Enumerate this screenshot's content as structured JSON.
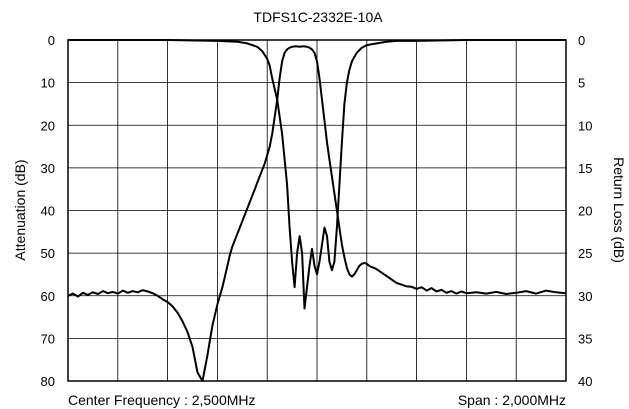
{
  "chart_data": {
    "type": "line",
    "title": "TDFS1C-2332E-10A",
    "ylabel_left": "Attenuation (dB)",
    "ylabel_right": "Return Loss (dB)",
    "footer_left": "Center Frequency : 2,500MHz",
    "footer_right": "Span : 2,000MHz",
    "x_divisions": 10,
    "ylim_left": [
      0,
      80
    ],
    "ylim_right": [
      0,
      40
    ],
    "yticks_left": [
      "0",
      "10",
      "20",
      "30",
      "40",
      "50",
      "60",
      "70",
      "80"
    ],
    "yticks_right": [
      "0",
      "5",
      "10",
      "15",
      "20",
      "25",
      "30",
      "35",
      "40"
    ],
    "y_inverted": true,
    "grid": true,
    "series": [
      {
        "axis": "left",
        "x": [
          0,
          0.1,
          0.2,
          0.3,
          0.4,
          0.5,
          0.6,
          0.7,
          0.8,
          0.9,
          1.0,
          1.1,
          1.2,
          1.3,
          1.4,
          1.5,
          1.6,
          1.7,
          1.8,
          1.9,
          2.0,
          2.1,
          2.2,
          2.3,
          2.4,
          2.5,
          2.6,
          2.7,
          2.8,
          2.9,
          3.0,
          3.1,
          3.15,
          3.2,
          3.25,
          3.3,
          3.35,
          3.4,
          3.45,
          3.5,
          3.55,
          3.6,
          3.65,
          3.7,
          3.75,
          3.8,
          3.85,
          3.9,
          3.95,
          4.0,
          4.05,
          4.1,
          4.15,
          4.2,
          4.25,
          4.3,
          4.35,
          4.4,
          4.45,
          4.5,
          4.55,
          4.6,
          4.65,
          4.7,
          4.75,
          4.8,
          4.85,
          4.9,
          4.95,
          5.0,
          5.05,
          5.1,
          5.15,
          5.2,
          5.25,
          5.3,
          5.35,
          5.4,
          5.45,
          5.5,
          5.55,
          5.6,
          5.65,
          5.7,
          5.75,
          5.8,
          5.85,
          5.9,
          5.95,
          6.0,
          6.05,
          6.1,
          6.15,
          6.2,
          6.25,
          6.3,
          6.35,
          6.4,
          6.45,
          6.5,
          6.55,
          6.6,
          6.7,
          6.8,
          6.9,
          7.0,
          7.1,
          7.2,
          7.3,
          7.4,
          7.5,
          7.6,
          7.7,
          7.8,
          7.9,
          8.0,
          8.2,
          8.4,
          8.6,
          8.8,
          9.0,
          9.2,
          9.4,
          9.6,
          9.8,
          10.0
        ],
        "y": [
          60,
          59.5,
          60.2,
          59.3,
          59.8,
          59.2,
          59.6,
          58.9,
          59.4,
          59.1,
          59.5,
          58.8,
          59.3,
          58.9,
          59.2,
          58.7,
          59.0,
          59.4,
          60.0,
          60.8,
          61.5,
          62.5,
          64,
          66,
          68.5,
          72,
          78,
          80,
          74,
          67,
          62,
          58,
          55.5,
          53,
          50.5,
          48.5,
          47,
          45.5,
          44,
          42.5,
          41,
          39.5,
          38,
          36.5,
          35,
          33.5,
          32,
          30.5,
          29,
          27,
          25,
          22,
          18,
          14,
          9,
          5,
          3,
          2.2,
          1.8,
          1.6,
          1.5,
          1.5,
          1.6,
          1.5,
          1.5,
          1.6,
          1.8,
          2.2,
          3,
          5,
          9,
          14,
          19,
          24,
          28,
          32,
          36,
          40,
          44,
          48,
          51,
          53.5,
          55,
          55.5,
          55,
          54,
          53,
          52.5,
          52.3,
          52.5,
          53,
          53.3,
          53.5,
          53.8,
          54.2,
          54.6,
          55,
          55.4,
          55.8,
          56.2,
          56.6,
          57,
          57.4,
          57.8,
          57.9,
          58.4,
          58.0,
          58.8,
          58.2,
          59.0,
          58.6,
          59.3,
          58.9,
          59.5,
          59.0,
          59.4,
          59.2,
          59.5,
          59.1,
          59.6,
          59.3,
          58.9,
          59.5,
          58.8,
          59.2,
          59.4
        ]
      },
      {
        "axis": "right",
        "x": [
          0,
          1,
          2,
          3,
          3.4,
          3.6,
          3.8,
          3.9,
          4.0,
          4.05,
          4.1,
          4.2,
          4.3,
          4.4,
          4.45,
          4.5,
          4.55,
          4.6,
          4.65,
          4.7,
          4.75,
          4.8,
          4.85,
          4.9,
          4.95,
          5.0,
          5.05,
          5.1,
          5.15,
          5.2,
          5.25,
          5.3,
          5.35,
          5.4,
          5.45,
          5.5,
          5.55,
          5.6,
          5.65,
          5.7,
          5.8,
          5.9,
          6.0,
          6.2,
          6.4,
          6.6,
          6.8,
          7,
          8,
          9,
          10
        ],
        "y": [
          0,
          0,
          0,
          0.1,
          0.2,
          0.4,
          0.8,
          1.3,
          2.2,
          3.0,
          4.5,
          7,
          11,
          17,
          22,
          26,
          29,
          25,
          23,
          25,
          31.5,
          29,
          26.5,
          24.5,
          26.5,
          27.5,
          26,
          24,
          22,
          23,
          26,
          27,
          26,
          22,
          17,
          12,
          7.5,
          5,
          3.5,
          2.5,
          1.5,
          0.9,
          0.6,
          0.4,
          0.2,
          0.1,
          0.1,
          0.1,
          0,
          0,
          0
        ]
      }
    ]
  }
}
